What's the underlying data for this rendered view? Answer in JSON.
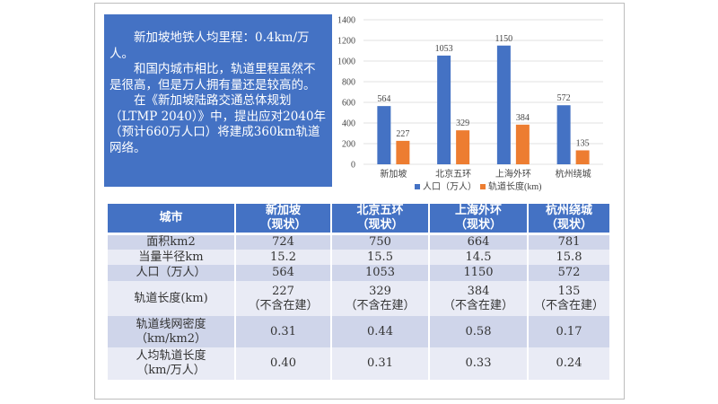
{
  "textbox": {
    "paragraphs": [
      "新加坡地铁人均里程：0.4km/万人。",
      "和国内城市相比，轨道里程虽然不是很高，但是万人拥有量还是较高的。",
      "在《新加坡陆路交通总体规划（LTMP 2040）》中，提出应对2040年（预计660万人口）将建成360km轨道网络。"
    ]
  },
  "chart_data": {
    "type": "bar",
    "categories": [
      "新加坡",
      "北京五环",
      "上海外环",
      "杭州绕城"
    ],
    "series": [
      {
        "name": "人口（万人）",
        "values": [
          564,
          1053,
          1150,
          572
        ],
        "color": "#4472c4"
      },
      {
        "name": "轨道长度(km)",
        "values": [
          227,
          329,
          384,
          135
        ],
        "color": "#ed7d31"
      }
    ],
    "yticks": [
      "0",
      "200",
      "400",
      "600",
      "800",
      "1000",
      "1200",
      "1400"
    ],
    "ylim": [
      0,
      1400
    ],
    "legend": "bottom",
    "grid": true
  },
  "table": {
    "headers": [
      [
        "城市",
        ""
      ],
      [
        "新加坡",
        "（现状）"
      ],
      [
        "北京五环",
        "（现状）"
      ],
      [
        "上海外环",
        "（现状）"
      ],
      [
        "杭州绕城",
        "（现状）"
      ]
    ],
    "rows": [
      {
        "label": [
          "面积km2"
        ],
        "cells": [
          [
            "724"
          ],
          [
            "750"
          ],
          [
            "664"
          ],
          [
            "781"
          ]
        ]
      },
      {
        "label": [
          "当量半径km"
        ],
        "cells": [
          [
            "15.2"
          ],
          [
            "15.5"
          ],
          [
            "14.5"
          ],
          [
            "15.8"
          ]
        ]
      },
      {
        "label": [
          "人口（万人）"
        ],
        "cells": [
          [
            "564"
          ],
          [
            "1053"
          ],
          [
            "1150"
          ],
          [
            "572"
          ]
        ]
      },
      {
        "label": [
          "轨道长度(km)"
        ],
        "cells": [
          [
            "227",
            "（不含在建）"
          ],
          [
            "329",
            "（不含在建）"
          ],
          [
            "384",
            "（不含在建）"
          ],
          [
            "135",
            "（不含在建）"
          ]
        ]
      },
      {
        "label": [
          "轨道线网密度",
          "（km/km2）"
        ],
        "cells": [
          [
            "0.31"
          ],
          [
            "0.44"
          ],
          [
            "0.58"
          ],
          [
            "0.17"
          ]
        ]
      },
      {
        "label": [
          "人均轨道长度",
          "（km/万人）"
        ],
        "cells": [
          [
            "0.40"
          ],
          [
            "0.31"
          ],
          [
            "0.33"
          ],
          [
            "0.24"
          ]
        ]
      }
    ]
  }
}
